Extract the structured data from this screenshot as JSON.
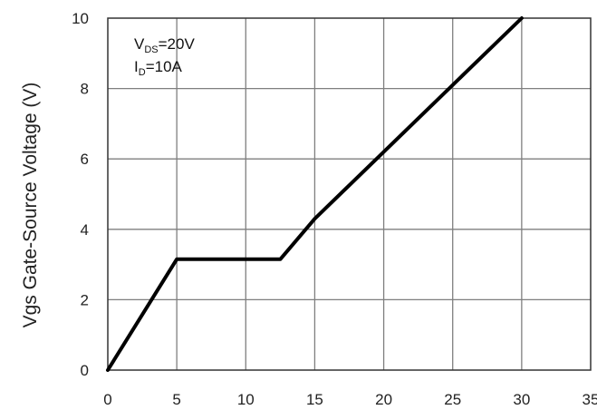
{
  "chart_data": {
    "type": "line",
    "title": "",
    "xlabel": "",
    "ylabel": "Vgs Gate-Source Voltage (V)",
    "xlim": [
      0,
      35
    ],
    "ylim": [
      0,
      10
    ],
    "x_ticks": [
      0,
      5,
      10,
      15,
      20,
      25,
      30,
      35
    ],
    "y_ticks": [
      0,
      2,
      4,
      6,
      8,
      10
    ],
    "grid": true,
    "legend": "none",
    "series": [
      {
        "x": [
          0,
          5,
          12.5,
          15,
          20,
          30
        ],
        "y": [
          0,
          3.15,
          3.15,
          4.3,
          6.2,
          10
        ]
      }
    ],
    "annotations": [
      {
        "main": "V",
        "sub": "DS",
        "rest": "=20V"
      },
      {
        "main": "I",
        "sub": "D",
        "rest": "=10A"
      }
    ],
    "line_color": "#000000",
    "grid_color": "#7f7f7f"
  }
}
